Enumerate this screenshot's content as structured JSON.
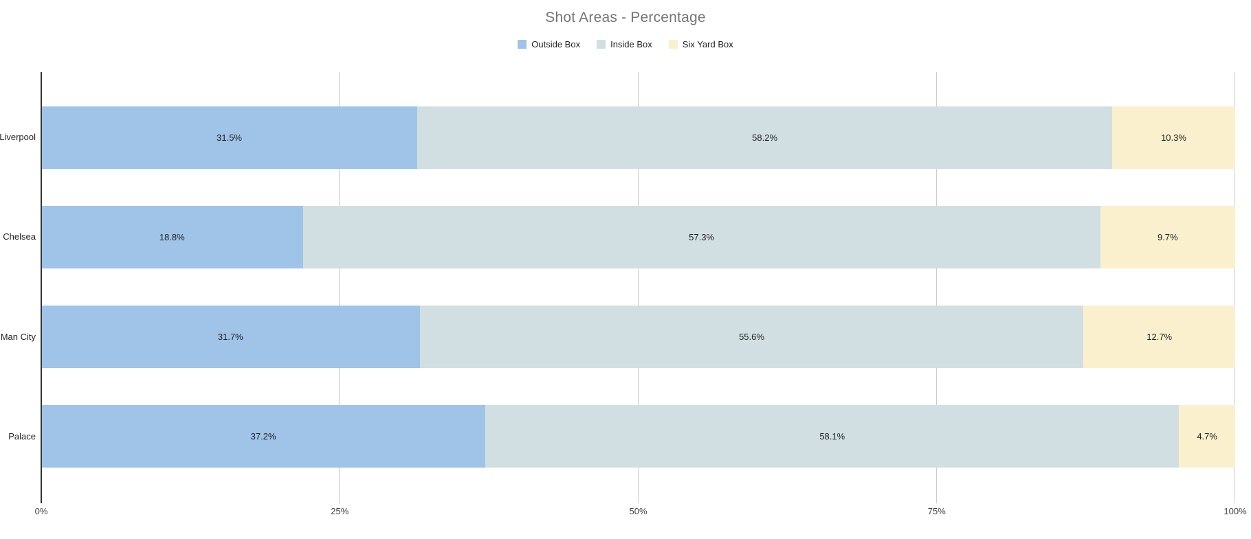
{
  "title": "Shot Areas - Percentage",
  "legend": {
    "items": [
      {
        "label": "Outside Box",
        "color": "#9fc4e8"
      },
      {
        "label": "Inside Box",
        "color": "#d2dfe2"
      },
      {
        "label": "Six Yard Box",
        "color": "#fbf0ce"
      }
    ]
  },
  "chart_data": {
    "type": "bar",
    "orientation": "horizontal",
    "stacked": "percent",
    "title": "Shot Areas - Percentage",
    "categories": [
      "Liverpool",
      "Chelsea",
      "Man City",
      "Palace"
    ],
    "series": [
      {
        "name": "Outside Box",
        "color": "#9fc4e8",
        "values": [
          31.5,
          18.8,
          31.7,
          37.2
        ]
      },
      {
        "name": "Inside Box",
        "color": "#d2dfe2",
        "values": [
          58.2,
          57.3,
          55.6,
          58.1
        ]
      },
      {
        "name": "Six Yard Box",
        "color": "#fbf0ce",
        "values": [
          10.3,
          9.7,
          12.7,
          4.7
        ]
      }
    ],
    "value_suffix": "%",
    "data_labels": true,
    "xlim": [
      0,
      100
    ],
    "x_ticks": [
      {
        "label": "0%",
        "value": 0
      },
      {
        "label": "25%",
        "value": 25
      },
      {
        "label": "50%",
        "value": 50
      },
      {
        "label": "75%",
        "value": 75
      },
      {
        "label": "100%",
        "value": 100
      }
    ],
    "legend_position": "top",
    "grid": true,
    "note": "Each row's segments are normalized to fill 100% of the bar width"
  },
  "colors": {
    "title_text": "#757575",
    "data_label_text": "#212121",
    "axis_tick_text": "#424242",
    "category_text": "#222222",
    "gridline": "#cccccc",
    "axis_line": "#333333",
    "background": "#ffffff"
  }
}
